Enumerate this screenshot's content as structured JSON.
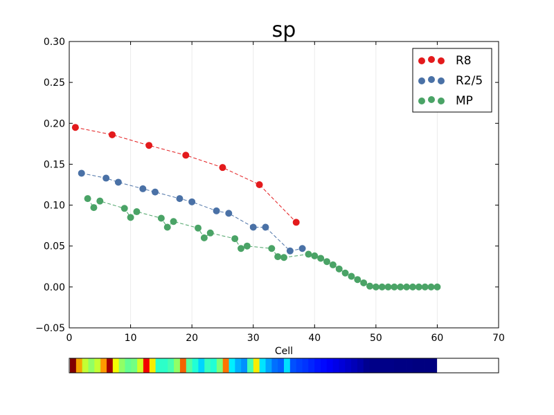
{
  "chart_data": {
    "type": "line",
    "title": "sp",
    "xlabel": "Cell",
    "ylabel": "",
    "xlim": [
      0,
      70
    ],
    "ylim": [
      -0.05,
      0.3
    ],
    "xticks": [
      "0",
      "10",
      "20",
      "30",
      "40",
      "50",
      "60",
      "70"
    ],
    "yticks": [
      "−0.05",
      "0.00",
      "0.05",
      "0.10",
      "0.15",
      "0.20",
      "0.25",
      "0.30"
    ],
    "grid": "vertical-light",
    "legend_position": "top-right",
    "series": [
      {
        "name": "R8",
        "color": "#e31a1c",
        "line_style": "dashed",
        "x": [
          1,
          7,
          13,
          19,
          25,
          31,
          37
        ],
        "y": [
          0.195,
          0.186,
          0.173,
          0.161,
          0.146,
          0.125,
          0.079
        ]
      },
      {
        "name": "R2/5",
        "color": "#4a71a6",
        "line_style": "dashed",
        "x": [
          2,
          6,
          8,
          12,
          14,
          18,
          20,
          24,
          26,
          30,
          32,
          36,
          38
        ],
        "y": [
          0.139,
          0.133,
          0.128,
          0.12,
          0.116,
          0.108,
          0.104,
          0.093,
          0.09,
          0.073,
          0.073,
          0.044,
          0.047
        ]
      },
      {
        "name": "MP",
        "color": "#4aa366",
        "line_style": "dashed",
        "x": [
          3,
          4,
          5,
          9,
          10,
          11,
          15,
          16,
          17,
          21,
          22,
          23,
          27,
          28,
          29,
          33,
          34,
          35,
          39,
          40,
          41,
          42,
          43,
          44,
          45,
          46,
          47,
          48,
          49,
          50,
          51,
          52,
          53,
          54,
          55,
          56,
          57,
          58,
          59,
          60
        ],
        "y": [
          0.108,
          0.097,
          0.105,
          0.096,
          0.085,
          0.092,
          0.084,
          0.073,
          0.08,
          0.072,
          0.06,
          0.066,
          0.059,
          0.047,
          0.05,
          0.047,
          0.037,
          0.036,
          0.04,
          0.038,
          0.035,
          0.031,
          0.027,
          0.022,
          0.017,
          0.013,
          0.009,
          0.005,
          0.001,
          0.0,
          0.0,
          0.0,
          0.0,
          0.0,
          0.0,
          0.0,
          0.0,
          0.0,
          0.0,
          0.0
        ]
      }
    ],
    "colorbar": {
      "cells": 60,
      "colors": [
        "#800000",
        "#f5a500",
        "#c4ff33",
        "#90ff66",
        "#c4ff33",
        "#ff9a00",
        "#a40000",
        "#f3ff03",
        "#90ff66",
        "#63ff93",
        "#73ff83",
        "#d0ff26",
        "#f30000",
        "#f8ed00",
        "#2cffc9",
        "#2cffc9",
        "#47ffaf",
        "#90ff66",
        "#f36200",
        "#56ffa0",
        "#21ffd6",
        "#00d4ff",
        "#35ffc1",
        "#21ffd6",
        "#7cff7a",
        "#ff7300",
        "#00f0ff",
        "#00b0ff",
        "#0090ff",
        "#43ffb3",
        "#f8ed00",
        "#00e4ff",
        "#00a4ff",
        "#0070ff",
        "#0060ff",
        "#00e0ff",
        "#0050ff",
        "#0040ff",
        "#0034ff",
        "#0024ff",
        "#0014ff",
        "#0008ff",
        "#0000f8",
        "#0000e8",
        "#0000d8",
        "#0000c8",
        "#0000b8",
        "#0000a8",
        "#000090",
        "#000088",
        "#000088",
        "#000088",
        "#000088",
        "#000084",
        "#000084",
        "#000084",
        "#000080",
        "#000080",
        "#000080",
        "#000080"
      ]
    }
  }
}
